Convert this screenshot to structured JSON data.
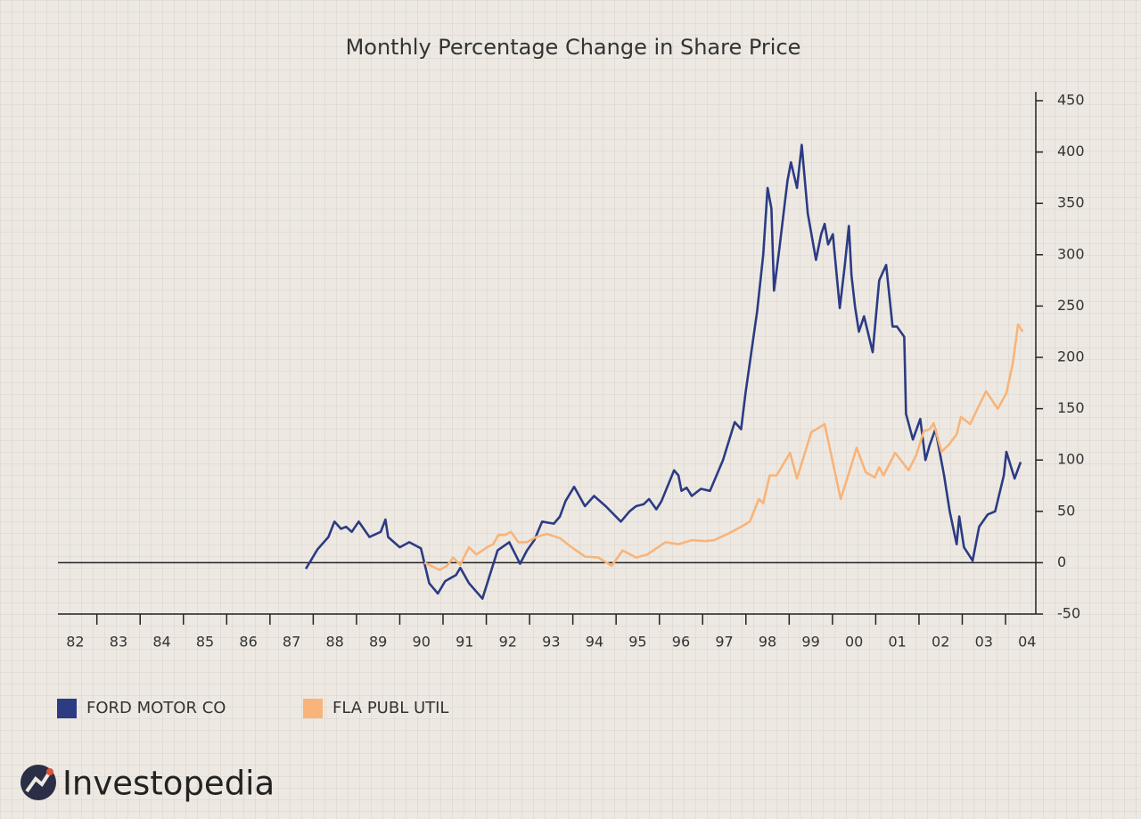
{
  "chart_data": {
    "type": "line",
    "title": "Monthly Percentage Change in Share Price",
    "xlim": [
      1982.1,
      2004.7
    ],
    "xticks": [
      {
        "value": 1982.5,
        "label": "82"
      },
      {
        "value": 1983.5,
        "label": "83"
      },
      {
        "value": 1984.5,
        "label": "84"
      },
      {
        "value": 1985.5,
        "label": "85"
      },
      {
        "value": 1986.5,
        "label": "86"
      },
      {
        "value": 1987.5,
        "label": "87"
      },
      {
        "value": 1988.5,
        "label": "88"
      },
      {
        "value": 1989.5,
        "label": "89"
      },
      {
        "value": 1990.5,
        "label": "90"
      },
      {
        "value": 1991.5,
        "label": "91"
      },
      {
        "value": 1992.5,
        "label": "92"
      },
      {
        "value": 1993.5,
        "label": "93"
      },
      {
        "value": 1994.5,
        "label": "94"
      },
      {
        "value": 1995.5,
        "label": "95"
      },
      {
        "value": 1996.5,
        "label": "96"
      },
      {
        "value": 1997.5,
        "label": "97"
      },
      {
        "value": 1998.5,
        "label": "98"
      },
      {
        "value": 1999.5,
        "label": "99"
      },
      {
        "value": 2000.5,
        "label": "00"
      },
      {
        "value": 2001.5,
        "label": "01"
      },
      {
        "value": 2002.5,
        "label": "02"
      },
      {
        "value": 2003.5,
        "label": "03"
      },
      {
        "value": 2004.5,
        "label": "04"
      }
    ],
    "xminorticks": [
      1983,
      1984,
      1985,
      1986,
      1987,
      1988,
      1989,
      1990,
      1991,
      1992,
      1993,
      1994,
      1995,
      1996,
      1997,
      1998,
      1999,
      2000,
      2001,
      2002,
      2003,
      2004
    ],
    "ylim": [
      -50,
      450
    ],
    "yticks": [
      -50,
      0,
      50,
      100,
      150,
      200,
      250,
      300,
      350,
      400,
      450
    ],
    "y_axis_side": "right",
    "zero_line": true,
    "legend": "bottom-left",
    "series": [
      {
        "name": "FORD MOTOR CO",
        "color": "#2c3b84",
        "x": [
          1987.83,
          1988.1,
          1988.35,
          1988.49,
          1988.64,
          1988.76,
          1988.89,
          1989.05,
          1989.3,
          1989.56,
          1989.67,
          1989.73,
          1990.0,
          1990.22,
          1990.49,
          1990.68,
          1990.88,
          1991.05,
          1991.3,
          1991.4,
          1991.6,
          1991.91,
          1992.26,
          1992.53,
          1992.78,
          1992.94,
          1993.11,
          1993.29,
          1993.56,
          1993.7,
          1993.83,
          1994.03,
          1994.28,
          1994.49,
          1994.76,
          1995.11,
          1995.31,
          1995.46,
          1995.64,
          1995.76,
          1995.93,
          1996.05,
          1996.34,
          1996.44,
          1996.51,
          1996.63,
          1996.75,
          1996.96,
          1997.17,
          1997.47,
          1997.74,
          1997.89,
          1997.99,
          1998.26,
          1998.4,
          1998.5,
          1998.59,
          1998.65,
          1998.77,
          1998.87,
          1998.96,
          1999.04,
          1999.18,
          1999.29,
          1999.43,
          1999.62,
          1999.74,
          1999.82,
          1999.9,
          2000.01,
          2000.17,
          2000.28,
          2000.38,
          2000.44,
          2000.52,
          2000.61,
          2000.73,
          2000.93,
          2001.08,
          2001.24,
          2001.39,
          2001.49,
          2001.66,
          2001.7,
          2001.86,
          2002.03,
          2002.15,
          2002.25,
          2002.38,
          2002.58,
          2002.71,
          2002.87,
          2002.93,
          2003.04,
          2003.24,
          2003.39,
          2003.59,
          2003.76,
          2003.96,
          2004.02,
          2004.21,
          2004.35
        ],
        "values": [
          -6,
          13,
          25,
          40,
          33,
          35,
          30,
          40,
          25,
          30,
          42,
          25,
          15,
          20,
          14,
          -20,
          -30,
          -18,
          -12,
          -5,
          -20,
          -35,
          12,
          20,
          -1,
          12,
          22,
          40,
          38,
          45,
          60,
          74,
          55,
          65,
          55,
          40,
          50,
          55,
          57,
          62,
          52,
          60,
          90,
          85,
          70,
          73,
          65,
          72,
          70,
          100,
          137,
          130,
          165,
          245,
          300,
          365,
          345,
          265,
          305,
          340,
          372,
          390,
          365,
          407,
          340,
          295,
          320,
          330,
          310,
          320,
          248,
          288,
          328,
          280,
          250,
          225,
          240,
          205,
          275,
          290,
          230,
          230,
          220,
          145,
          120,
          140,
          100,
          115,
          130,
          85,
          50,
          18,
          45,
          15,
          2,
          35,
          47,
          50,
          85,
          108,
          82,
          98
        ]
      },
      {
        "name": "FLA PUBL UTIL",
        "color": "#f8b47a",
        "x": [
          1990.57,
          1990.92,
          1991.09,
          1991.23,
          1991.4,
          1991.6,
          1991.77,
          1992.02,
          1992.16,
          1992.28,
          1992.43,
          1992.57,
          1992.74,
          1992.94,
          1993.15,
          1993.4,
          1993.7,
          1993.97,
          1994.28,
          1994.59,
          1994.9,
          1995.15,
          1995.46,
          1995.72,
          1995.97,
          1996.14,
          1996.44,
          1996.75,
          1997.06,
          1997.27,
          1997.58,
          1997.89,
          1998.09,
          1998.3,
          1998.4,
          1998.55,
          1998.71,
          1999.02,
          1999.18,
          1999.51,
          1999.82,
          2000.19,
          2000.4,
          2000.56,
          2000.77,
          2000.98,
          2001.08,
          2001.18,
          2001.45,
          2001.76,
          2001.94,
          2002.11,
          2002.25,
          2002.34,
          2002.52,
          2002.69,
          2002.87,
          2002.97,
          2003.18,
          2003.55,
          2003.82,
          2004.02,
          2004.17,
          2004.29,
          2004.4
        ],
        "values": [
          0,
          -7,
          -3,
          5,
          -2,
          15,
          8,
          15,
          18,
          27,
          27,
          30,
          20,
          20,
          25,
          28,
          24,
          15,
          6,
          5,
          -3,
          12,
          5,
          8,
          15,
          20,
          18,
          22,
          21,
          22,
          28,
          35,
          40,
          62,
          58,
          85,
          85,
          107,
          82,
          127,
          135,
          62,
          90,
          112,
          88,
          83,
          93,
          85,
          107,
          90,
          105,
          128,
          130,
          136,
          108,
          115,
          125,
          142,
          135,
          167,
          150,
          165,
          195,
          232,
          225
        ]
      }
    ]
  },
  "brand": "Investopedia"
}
